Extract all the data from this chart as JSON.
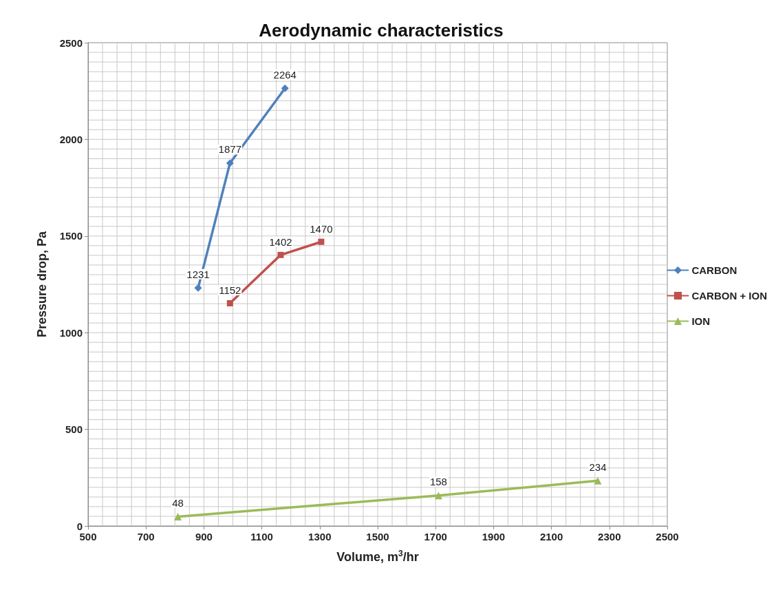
{
  "chart_data": {
    "type": "line",
    "title": "Aerodynamic characteristics",
    "xlabel": "Volume, m$^{3}$/hr",
    "ylabel": "Pressure drop, Pa",
    "series": [
      {
        "name": "CARBON",
        "color": "#4f81bd",
        "marker": "diamond",
        "x": [
          880,
          990,
          1180
        ],
        "values": [
          1231,
          1877,
          2264
        ]
      },
      {
        "name": "CARBON + ION",
        "color": "#c0504d",
        "marker": "square",
        "x": [
          990,
          1165,
          1305
        ],
        "values": [
          1152,
          1402,
          1470
        ]
      },
      {
        "name": "ION",
        "color": "#9bbb59",
        "marker": "triangle",
        "x": [
          810,
          1710,
          2260
        ],
        "values": [
          48,
          158,
          234
        ]
      }
    ],
    "xlim": [
      500,
      2500
    ],
    "xticks": [
      500,
      {
        "value": 550,
        "label": null
      },
      {
        "value": 600,
        "label": null
      },
      {
        "value": 650,
        "label": null
      },
      700,
      {
        "value": 750,
        "label": null
      },
      {
        "value": 800,
        "label": null
      },
      {
        "value": 850,
        "label": null
      },
      900,
      {
        "value": 950,
        "label": null
      },
      {
        "value": 1000,
        "label": null
      },
      {
        "value": 1050,
        "label": null
      },
      1100,
      {
        "value": 1150,
        "label": null
      },
      {
        "value": 1200,
        "label": null
      },
      {
        "value": 1250,
        "label": null
      },
      1300,
      {
        "value": 1350,
        "label": null
      },
      {
        "value": 1400,
        "label": null
      },
      {
        "value": 1450,
        "label": null
      },
      1500,
      {
        "value": 1550,
        "label": null
      },
      {
        "value": 1600,
        "label": null
      },
      {
        "value": 1650,
        "label": null
      },
      1700,
      {
        "value": 1750,
        "label": null
      },
      {
        "value": 1800,
        "label": null
      },
      {
        "value": 1850,
        "label": null
      },
      1900,
      {
        "value": 1950,
        "label": null
      },
      {
        "value": 2000,
        "label": null
      },
      {
        "value": 2050,
        "label": null
      },
      2100,
      {
        "value": 2150,
        "label": null
      },
      {
        "value": 2200,
        "label": null
      },
      {
        "value": 2250,
        "label": null
      },
      2300,
      {
        "value": 2350,
        "label": null
      },
      {
        "value": 2400,
        "label": null
      },
      {
        "value": 2450,
        "label": null
      },
      2500
    ],
    "ylim": [
      0,
      2500
    ],
    "yticks": [
      0,
      {
        "value": 50,
        "label": null
      },
      {
        "value": 100,
        "label": null
      },
      {
        "value": 150,
        "label": null
      },
      {
        "value": 200,
        "label": null
      },
      {
        "value": 250,
        "label": null
      },
      {
        "value": 300,
        "label": null
      },
      {
        "value": 350,
        "label": null
      },
      {
        "value": 400,
        "label": null
      },
      {
        "value": 450,
        "label": null
      },
      500,
      {
        "value": 550,
        "label": null
      },
      {
        "value": 600,
        "label": null
      },
      {
        "value": 650,
        "label": null
      },
      {
        "value": 700,
        "label": null
      },
      {
        "value": 750,
        "label": null
      },
      {
        "value": 800,
        "label": null
      },
      {
        "value": 850,
        "label": null
      },
      {
        "value": 900,
        "label": null
      },
      {
        "value": 950,
        "label": null
      },
      1000,
      {
        "value": 1050,
        "label": null
      },
      {
        "value": 1100,
        "label": null
      },
      {
        "value": 1150,
        "label": null
      },
      {
        "value": 1200,
        "label": null
      },
      {
        "value": 1250,
        "label": null
      },
      {
        "value": 1300,
        "label": null
      },
      {
        "value": 1350,
        "label": null
      },
      {
        "value": 1400,
        "label": null
      },
      {
        "value": 1450,
        "label": null
      },
      1500,
      {
        "value": 1550,
        "label": null
      },
      {
        "value": 1600,
        "label": null
      },
      {
        "value": 1650,
        "label": null
      },
      {
        "value": 1700,
        "label": null
      },
      {
        "value": 1750,
        "label": null
      },
      {
        "value": 1800,
        "label": null
      },
      {
        "value": 1850,
        "label": null
      },
      {
        "value": 1900,
        "label": null
      },
      {
        "value": 1950,
        "label": null
      },
      2000,
      {
        "value": 2050,
        "label": null
      },
      {
        "value": 2100,
        "label": null
      },
      {
        "value": 2150,
        "label": null
      },
      {
        "value": 2200,
        "label": null
      },
      {
        "value": 2250,
        "label": null
      },
      {
        "value": 2300,
        "label": null
      },
      {
        "value": 2350,
        "label": null
      },
      {
        "value": 2400,
        "label": null
      },
      {
        "value": 2450,
        "label": null
      },
      2500
    ],
    "grid": true,
    "legend": "right",
    "data_labels": true,
    "line_style": "solid"
  }
}
